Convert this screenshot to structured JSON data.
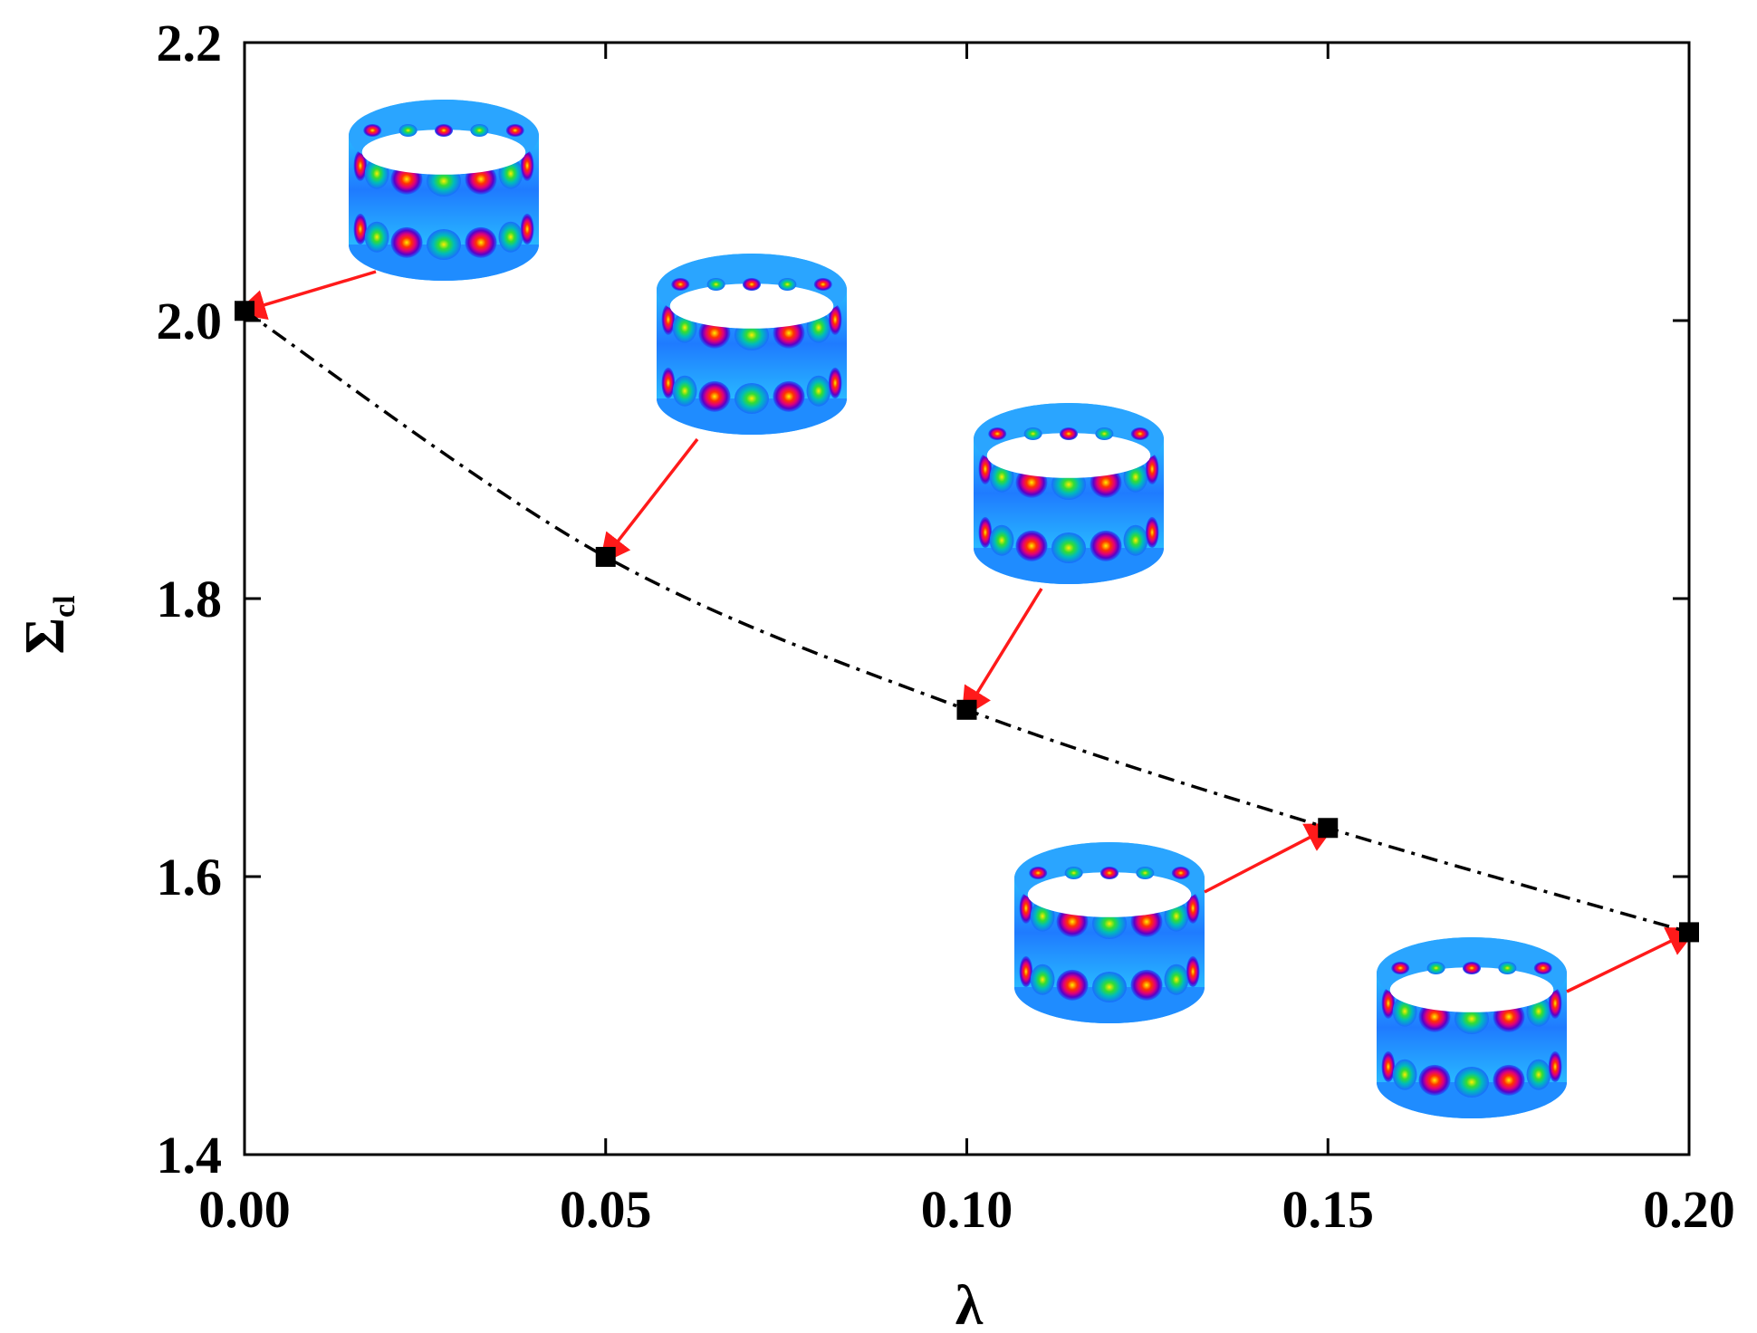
{
  "chart_data": {
    "type": "scatter",
    "title": "",
    "xlabel": "λ",
    "ylabel": {
      "symbol": "Σ",
      "subscript": "cl"
    },
    "xlim": [
      0.0,
      0.2
    ],
    "ylim": [
      1.4,
      2.2
    ],
    "xticks": [
      "0.00",
      "0.05",
      "0.10",
      "0.15",
      "0.20"
    ],
    "yticks": [
      "1.4",
      "1.6",
      "1.8",
      "2.0",
      "2.2"
    ],
    "grid": false,
    "legend": "none",
    "series": [
      {
        "x": [
          0.0,
          0.05,
          0.1,
          0.15,
          0.2
        ],
        "y": [
          2.007,
          1.83,
          1.72,
          1.635,
          1.56
        ],
        "marker": "square",
        "line": "dash-dot"
      }
    ],
    "annotations": [
      {
        "type": "mode-shape-inset",
        "points_to_x": 0.0,
        "pattern": "12 circumferential lobes, 2 axial rows"
      },
      {
        "type": "mode-shape-inset",
        "points_to_x": 0.05,
        "pattern": "12 circumferential lobes, 2 axial rows"
      },
      {
        "type": "mode-shape-inset",
        "points_to_x": 0.1,
        "pattern": "12 circumferential lobes, 2 axial rows"
      },
      {
        "type": "mode-shape-inset",
        "points_to_x": 0.15,
        "pattern": "12 circumferential lobes, 2 axial rows"
      },
      {
        "type": "mode-shape-inset",
        "points_to_x": 0.2,
        "pattern": "12 circumferential lobes, 2 axial rows"
      }
    ],
    "colors": {
      "marker": "#000000",
      "line": "#000000",
      "arrow": "#ff1a1a",
      "shell_base": "#1a8cff"
    }
  }
}
